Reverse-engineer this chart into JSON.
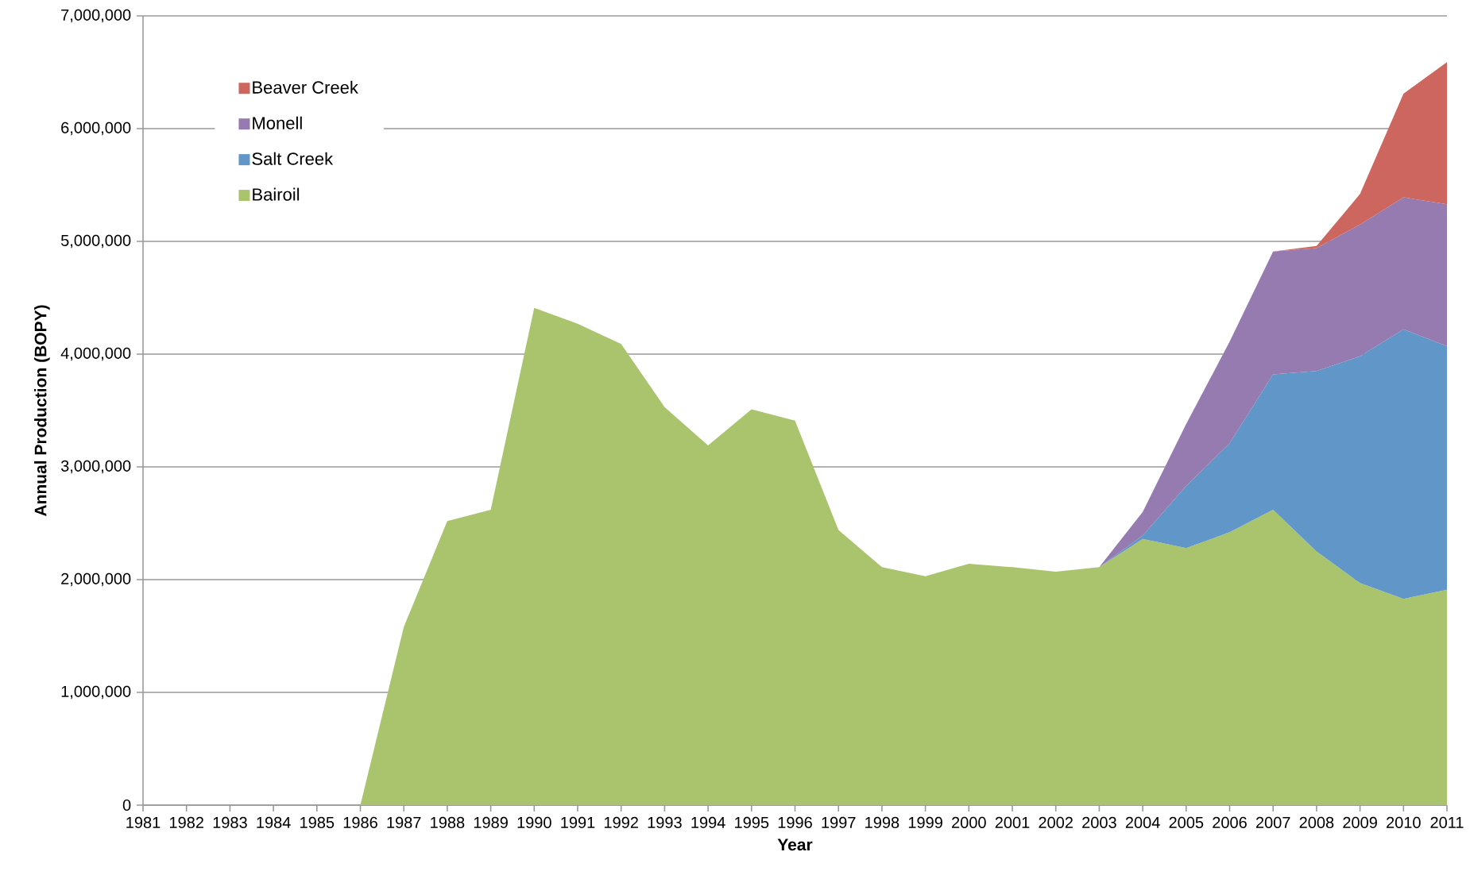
{
  "chart_data": {
    "type": "area",
    "stacked": true,
    "xlabel": "Year",
    "ylabel": "Annual Production (BOPY)",
    "categories": [
      "1981",
      "1982",
      "1983",
      "1984",
      "1985",
      "1986",
      "1987",
      "1988",
      "1989",
      "1990",
      "1991",
      "1992",
      "1993",
      "1994",
      "1995",
      "1996",
      "1997",
      "1998",
      "1999",
      "2000",
      "2001",
      "2002",
      "2003",
      "2004",
      "2005",
      "2006",
      "2007",
      "2008",
      "2009",
      "2010",
      "2011"
    ],
    "ylim": [
      0,
      7000000
    ],
    "yticks": [
      {
        "value": 0,
        "label": "0"
      },
      {
        "value": 1000000,
        "label": "1,000,000"
      },
      {
        "value": 2000000,
        "label": "2,000,000"
      },
      {
        "value": 3000000,
        "label": "3,000,000"
      },
      {
        "value": 4000000,
        "label": "4,000,000"
      },
      {
        "value": 5000000,
        "label": "5,000,000"
      },
      {
        "value": 6000000,
        "label": "6,000,000"
      },
      {
        "value": 7000000,
        "label": "7,000,000"
      }
    ],
    "grid": "y",
    "legend": "top left",
    "series": [
      {
        "name": "Bairoil",
        "color": "#a9c46c",
        "values": [
          0,
          0,
          0,
          0,
          0,
          0,
          1580000,
          2520000,
          2620000,
          4410000,
          4270000,
          4090000,
          3530000,
          3190000,
          3510000,
          3410000,
          2440000,
          2110000,
          2030000,
          2140000,
          2110000,
          2070000,
          2110000,
          2360000,
          2280000,
          2420000,
          2620000,
          2250000,
          1970000,
          1830000,
          1910000
        ]
      },
      {
        "name": "Salt Creek",
        "color": "#6096c8",
        "values": [
          null,
          null,
          null,
          null,
          null,
          null,
          null,
          null,
          null,
          null,
          null,
          null,
          null,
          null,
          null,
          null,
          null,
          null,
          null,
          null,
          null,
          null,
          0,
          30000,
          550000,
          790000,
          1200000,
          1600000,
          2010000,
          2390000,
          2160000
        ]
      },
      {
        "name": "Monell",
        "color": "#957bb0",
        "values": [
          null,
          null,
          null,
          null,
          null,
          null,
          null,
          null,
          null,
          null,
          null,
          null,
          null,
          null,
          null,
          null,
          null,
          null,
          null,
          null,
          null,
          null,
          0,
          210000,
          550000,
          900000,
          1090000,
          1090000,
          1170000,
          1170000,
          1260000
        ]
      },
      {
        "name": "Beaver Creek",
        "color": "#cc665f",
        "values": [
          null,
          null,
          null,
          null,
          null,
          null,
          null,
          null,
          null,
          null,
          null,
          null,
          null,
          null,
          null,
          null,
          null,
          null,
          null,
          null,
          null,
          null,
          null,
          null,
          null,
          null,
          0,
          20000,
          270000,
          920000,
          1260000
        ]
      }
    ]
  }
}
